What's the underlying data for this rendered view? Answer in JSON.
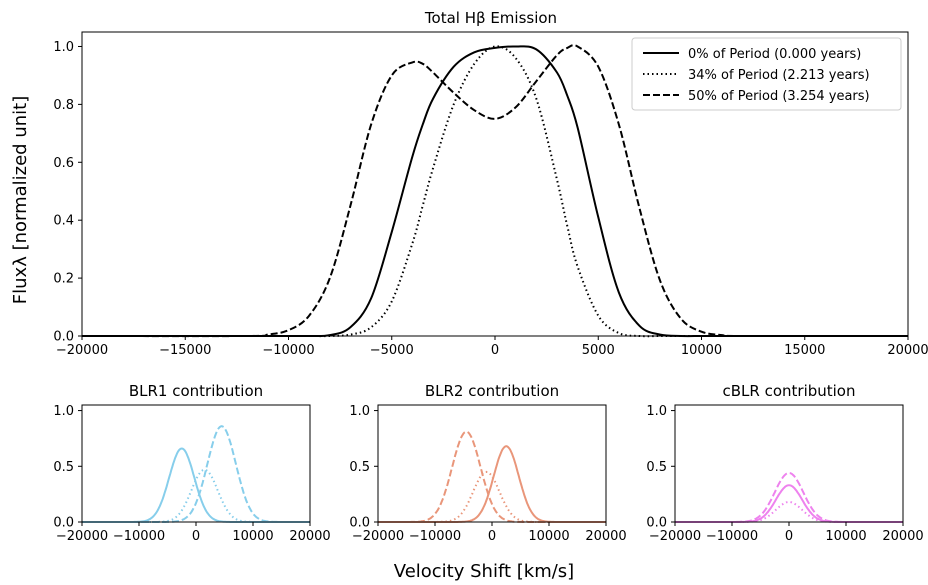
{
  "chart_data": [
    {
      "type": "line",
      "title": "Total Hβ Emission",
      "ylabel": "Flux_λ [normalized unit]",
      "xlim": [
        -20000,
        20000
      ],
      "ylim": [
        0,
        1.05
      ],
      "xticks": [
        -20000,
        -15000,
        -10000,
        -5000,
        0,
        5000,
        10000,
        15000,
        20000
      ],
      "yticks": [
        0.0,
        0.2,
        0.4,
        0.6,
        0.8,
        1.0
      ],
      "legend_position": "top-right",
      "x": [
        -12000,
        -11000,
        -10000,
        -9000,
        -8000,
        -7000,
        -6000,
        -5000,
        -4000,
        -3500,
        -3000,
        -2000,
        -1000,
        0,
        1000,
        2000,
        3000,
        3500,
        4000,
        5000,
        6000,
        7000,
        8000,
        9000,
        10000,
        11000,
        12000
      ],
      "series": [
        {
          "name": "0% of Period (0.000 years)",
          "style": "solid",
          "color": "#000000",
          "values": [
            0.0,
            0.0,
            0.0,
            0.0,
            0.003,
            0.03,
            0.13,
            0.36,
            0.62,
            0.73,
            0.82,
            0.93,
            0.98,
            0.995,
            1.0,
            0.99,
            0.91,
            0.83,
            0.72,
            0.41,
            0.15,
            0.035,
            0.005,
            0.0,
            0.0,
            0.0,
            0.0
          ]
        },
        {
          "name": "34% of Period (2.213 years)",
          "style": "dotted",
          "color": "#000000",
          "values": [
            0.0,
            0.0,
            0.0,
            0.0,
            0.0,
            0.005,
            0.03,
            0.12,
            0.32,
            0.45,
            0.58,
            0.8,
            0.94,
            1.0,
            0.96,
            0.82,
            0.54,
            0.38,
            0.24,
            0.07,
            0.01,
            0.0,
            0.0,
            0.0,
            0.0,
            0.0,
            0.0
          ]
        },
        {
          "name": "50% of Period (3.254 years)",
          "style": "dashed",
          "color": "#000000",
          "values": [
            0.0,
            0.005,
            0.02,
            0.07,
            0.2,
            0.45,
            0.73,
            0.9,
            0.945,
            0.94,
            0.91,
            0.84,
            0.78,
            0.75,
            0.79,
            0.88,
            0.97,
            0.995,
            1.0,
            0.93,
            0.73,
            0.44,
            0.19,
            0.06,
            0.015,
            0.003,
            0.0
          ]
        }
      ]
    },
    {
      "type": "line",
      "title": "BLR1 contribution",
      "xlim": [
        -20000,
        20000
      ],
      "ylim": [
        0,
        1.05
      ],
      "xticks": [
        -20000,
        -10000,
        0,
        10000,
        20000
      ],
      "yticks": [
        0.0,
        0.5,
        1.0
      ],
      "color": "#87ceeb",
      "series": [
        {
          "style": "solid",
          "center": -2500,
          "sigma": 2200,
          "peak": 0.66
        },
        {
          "style": "dotted",
          "center": 1500,
          "sigma": 2300,
          "peak": 0.47
        },
        {
          "style": "dashed",
          "center": 4500,
          "sigma": 2500,
          "peak": 0.86
        }
      ]
    },
    {
      "type": "line",
      "title": "BLR2 contribution",
      "xlim": [
        -20000,
        20000
      ],
      "ylim": [
        0,
        1.05
      ],
      "xticks": [
        -20000,
        -10000,
        0,
        10000,
        20000
      ],
      "yticks": [
        0.0,
        0.5,
        1.0
      ],
      "color": "#e9967a",
      "series": [
        {
          "style": "solid",
          "center": 2500,
          "sigma": 2200,
          "peak": 0.68
        },
        {
          "style": "dotted",
          "center": -1000,
          "sigma": 2300,
          "peak": 0.45
        },
        {
          "style": "dashed",
          "center": -4500,
          "sigma": 2500,
          "peak": 0.81
        }
      ]
    },
    {
      "type": "line",
      "title": "cBLR contribution",
      "xlim": [
        -20000,
        20000
      ],
      "ylim": [
        0,
        1.05
      ],
      "xticks": [
        -20000,
        -10000,
        0,
        10000,
        20000
      ],
      "yticks": [
        0.0,
        0.5,
        1.0
      ],
      "color": "#ee82ee",
      "series": [
        {
          "style": "solid",
          "center": 0,
          "sigma": 2300,
          "peak": 0.33
        },
        {
          "style": "dotted",
          "center": 0,
          "sigma": 2300,
          "peak": 0.18
        },
        {
          "style": "dashed",
          "center": 0,
          "sigma": 2500,
          "peak": 0.44
        }
      ]
    }
  ],
  "figure": {
    "xlabel": "Velocity Shift [km/s]",
    "ylabel": "Fluxλ [normalized unit]"
  }
}
